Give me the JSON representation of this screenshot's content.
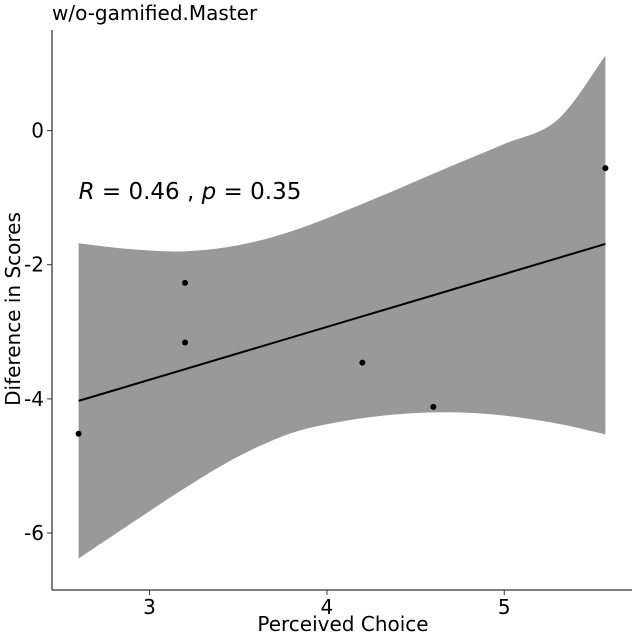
{
  "chart_data": {
    "type": "scatter",
    "title": "w/o-gamified.Master",
    "xlabel": "Perceived Choice",
    "ylabel": "Diference in Scores",
    "xlim": [
      2.45,
      5.72
    ],
    "ylim": [
      -6.85,
      1.5
    ],
    "x_ticks": [
      3,
      4,
      5
    ],
    "x_tick_labels": [
      "3",
      "4",
      "5"
    ],
    "y_ticks": [
      0,
      -2,
      -4,
      -6
    ],
    "y_tick_labels": [
      "0",
      "-2",
      "-4",
      "-6"
    ],
    "grid": false,
    "points": [
      {
        "x": 2.6,
        "y": -4.52
      },
      {
        "x": 3.2,
        "y": -2.27
      },
      {
        "x": 3.2,
        "y": -3.16
      },
      {
        "x": 4.2,
        "y": -3.46
      },
      {
        "x": 4.6,
        "y": -4.12
      },
      {
        "x": 5.57,
        "y": -0.56
      }
    ],
    "regression_line": {
      "x": [
        2.6,
        5.57
      ],
      "y": [
        -4.03,
        -1.69
      ]
    },
    "confidence_band": {
      "x": [
        2.6,
        2.9,
        3.2,
        3.5,
        3.8,
        4.1,
        4.4,
        4.7,
        5.0,
        5.3,
        5.57
      ],
      "upper": [
        -1.68,
        -1.77,
        -1.8,
        -1.71,
        -1.5,
        -1.2,
        -0.87,
        -0.53,
        -0.2,
        0.16,
        1.12
      ],
      "lower": [
        -6.38,
        -5.85,
        -5.33,
        -4.86,
        -4.51,
        -4.33,
        -4.23,
        -4.2,
        -4.25,
        -4.37,
        -4.53
      ]
    },
    "annotation": {
      "x": 2.6,
      "y": -0.9,
      "r_label": "R",
      "r_value": " = 0.46 , ",
      "p_label": "p",
      "p_value": " = 0.35"
    },
    "colors": {
      "band": "#999999",
      "line": "#000000",
      "points": "#000000"
    }
  }
}
